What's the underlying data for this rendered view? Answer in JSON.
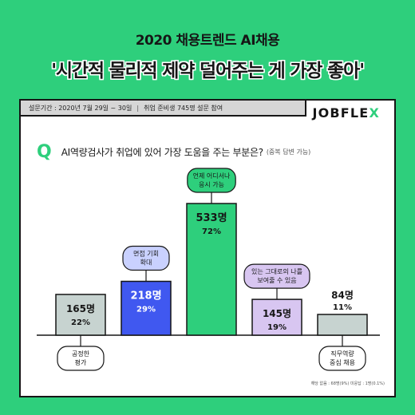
{
  "headline": {
    "subtitle": "2020 채용트렌드 AI채용",
    "title": "'시간적 물리적 제약 덜어주는 게 가장 좋아'"
  },
  "survey": {
    "period": "설문기간 : 2020년 7월 29일 ~ 30일",
    "respondents": "취업 준비생 745명 설문 참여"
  },
  "logo": {
    "prefix": "JOBFLE",
    "suffix": "X"
  },
  "question": {
    "letter": "Q",
    "text": "AI역량검사가 취업에 있어 가장 도움을 주는 부분은?",
    "note": "(중복 답변 가능)"
  },
  "footnote": "해당 없음 : 68명(9%)   미응답 : 1명(0.1%)",
  "colors": {
    "green": "#2ecf7c",
    "gray": "#c7d3d0",
    "blue": "#4058f0",
    "purple": "#d8c6f1",
    "lightgray": "#d8d8d8",
    "ink": "#161616"
  },
  "chart_data": {
    "type": "bar",
    "title": "",
    "xlabel": "",
    "ylabel": "",
    "ylim": [
      0,
      560
    ],
    "grid": false,
    "legend": "none",
    "categories": [
      "공정한 평가",
      "면접 기회 확대",
      "언제 어디서나 응시 가능",
      "있는 그대로의 나를 보여줄 수 있음",
      "직무역량 중심 채용"
    ],
    "label_lines": [
      [
        "공정한",
        "평가"
      ],
      [
        "면접 기회",
        "확대"
      ],
      [
        "언제 어디서나",
        "응시 가능"
      ],
      [
        "있는 그대로의 나를",
        "보여줄 수 있음"
      ],
      [
        "직무역량",
        "중심 채용"
      ]
    ],
    "label_placement": [
      "below",
      "above",
      "above",
      "above",
      "below"
    ],
    "values": [
      165,
      218,
      533,
      145,
      84
    ],
    "value_labels": [
      "165명",
      "218명",
      "533명",
      "145명",
      "84명"
    ],
    "percent_labels": [
      "22%",
      "29%",
      "72%",
      "19%",
      "11%"
    ],
    "bar_colors": [
      "#c7d3d0",
      "#4058f0",
      "#2ecf7c",
      "#d8c6f1",
      "#c7d3d0"
    ],
    "label_text_colors": [
      "#161616",
      "#ffffff",
      "#161616",
      "#161616",
      "#161616"
    ]
  }
}
